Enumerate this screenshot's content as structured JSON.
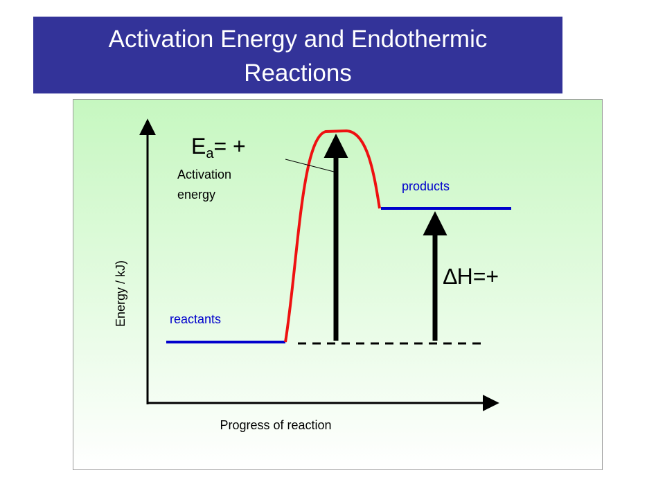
{
  "title": {
    "lines": [
      "Activation Energy and Endothermic",
      "Reactions"
    ]
  },
  "diagram": {
    "ea_label": {
      "symbol": "E",
      "subscript": "a",
      "text": "= +"
    },
    "activation_label": {
      "lines": [
        "Activation",
        "energy"
      ]
    },
    "products_label": "products",
    "reactants_label": "reactants",
    "enthalpy_label": "∆H=+",
    "y_axis_label": "Energy / kJ)",
    "x_axis_label": "Progress of reaction"
  }
}
